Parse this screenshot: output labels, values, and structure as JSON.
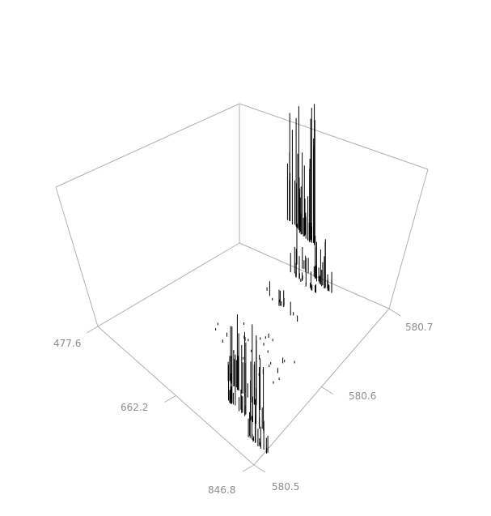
{
  "chart_data": {
    "type": "3d-stick",
    "title": "",
    "xlabel": "",
    "ylabel": "",
    "zlabel": "",
    "grid": false,
    "legend": false,
    "x_axis": {
      "ticks": [
        "477.6",
        "662.2",
        "846.8"
      ],
      "range": [
        477.6,
        846.8
      ]
    },
    "y_axis": {
      "ticks": [
        "580.5",
        "580.6",
        "580.7"
      ],
      "range": [
        580.5,
        580.7
      ]
    },
    "z_axis": {
      "range": [
        0,
        1
      ]
    },
    "colors": {
      "box": "#b0b0b0",
      "tick_text": "#8c8c8c",
      "sticks": "#000000"
    },
    "clusters": [
      {
        "x_center": 640,
        "y_center": 580.6994,
        "x_spread": 35,
        "y_spread": 0.0008,
        "count": 26,
        "max_intensity": 1.0,
        "bias": "front"
      },
      {
        "x_center": 655,
        "y_center": 580.6975,
        "x_spread": 20,
        "y_spread": 0.0006,
        "count": 14,
        "max_intensity": 0.6,
        "bias": "mid"
      },
      {
        "x_center": 712,
        "y_center": 580.674,
        "x_spread": 40,
        "y_spread": 0.0015,
        "count": 26,
        "max_intensity": 0.34,
        "bias": "mid"
      },
      {
        "x_center": 707,
        "y_center": 580.664,
        "x_spread": 35,
        "y_spread": 0.0015,
        "count": 20,
        "max_intensity": 0.2,
        "bias": "mid"
      },
      {
        "x_center": 700,
        "y_center": 580.633,
        "x_spread": 40,
        "y_spread": 0.002,
        "count": 14,
        "max_intensity": 0.12,
        "bias": "mid"
      },
      {
        "x_center": 755,
        "y_center": 580.5445,
        "x_spread": 40,
        "y_spread": 0.001,
        "count": 22,
        "max_intensity": 0.56,
        "bias": "back"
      },
      {
        "x_center": 782,
        "y_center": 580.5305,
        "x_spread": 45,
        "y_spread": 0.0012,
        "count": 28,
        "max_intensity": 0.55,
        "bias": "back"
      },
      {
        "x_center": 830,
        "y_center": 580.517,
        "x_spread": 25,
        "y_spread": 0.0012,
        "count": 18,
        "max_intensity": 0.2,
        "bias": "mid"
      },
      {
        "x_center": 710,
        "y_center": 580.584,
        "x_spread": 80,
        "y_spread": 0.02,
        "count": 28,
        "max_intensity": 0.04,
        "bias": "mid"
      }
    ]
  }
}
